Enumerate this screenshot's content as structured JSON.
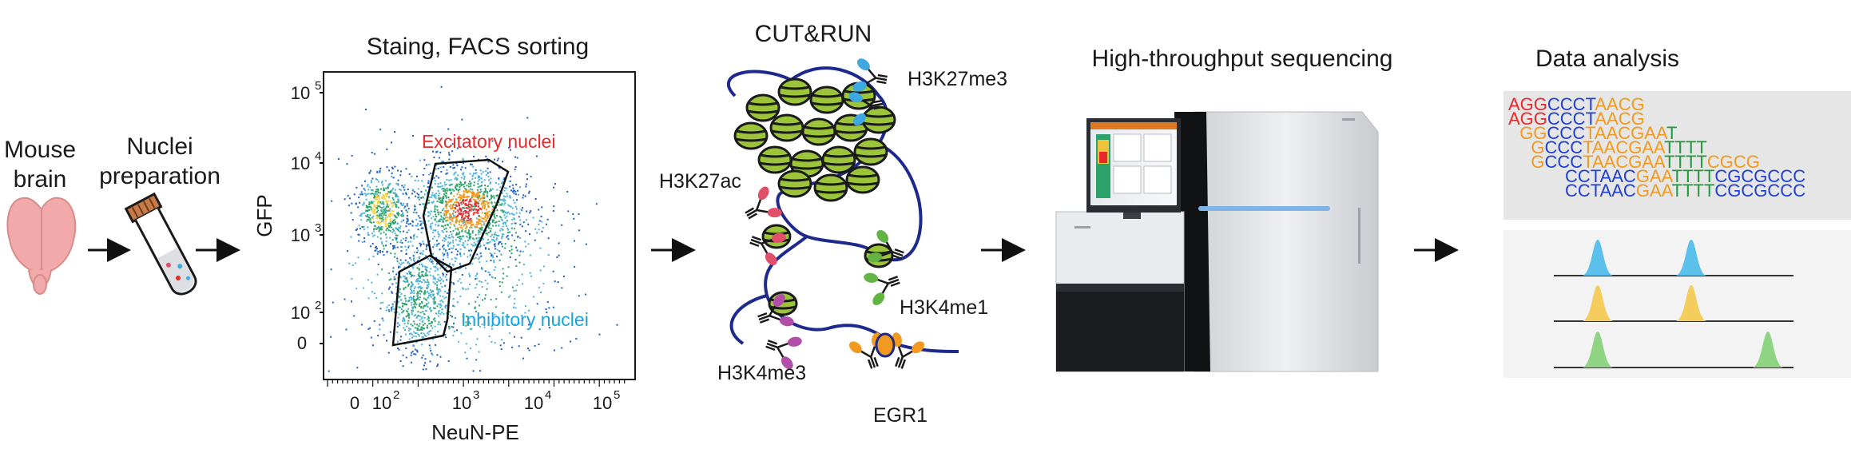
{
  "labels": {
    "mouse": "Mouse",
    "brain": "brain",
    "nuclei": "Nuclei",
    "preparation": "preparation",
    "facs_title": "Staing, FACS sorting",
    "cutrun_title": "CUT&RUN",
    "seq_title": "High-throughput sequencing",
    "analysis_title": "Data analysis"
  },
  "facs": {
    "y_axis_label": "GFP",
    "x_axis_label": "NeuN-PE",
    "y_ticks": {
      "t5": "5",
      "t4": "4",
      "t3": "3",
      "t2": "2"
    },
    "x_ticks": {
      "t2": "2",
      "t3": "3",
      "t4": "4",
      "t5": "5"
    },
    "tick_base": "10",
    "zero": "0",
    "gate_excitatory": "Excitatory nuclei",
    "gate_inhibitory": "Inhibitory nuclei",
    "gate_excitatory_color": "#e8292a",
    "gate_inhibitory_color": "#1aa3dc"
  },
  "cutrun": {
    "marks": {
      "h3k27me3": "H3K27me3",
      "h3k27ac": "H3K27ac",
      "h3k4me1": "H3K4me1",
      "h3k4me3": "H3K4me3",
      "egr1": "EGR1"
    },
    "colors": {
      "h3k27me3": "#3ea8e0",
      "h3k27ac": "#e0506a",
      "h3k4me1": "#62b544",
      "h3k4me3": "#b14fa8",
      "egr1": "#f19a1f",
      "dna": "#1d2a8c",
      "nucleosome": "#9bc43a"
    }
  },
  "reads": [
    {
      "segments": [
        [
          "AGG",
          "#e8292a"
        ],
        [
          "CCCT",
          "#1f3fd6"
        ],
        [
          "AACG",
          "#f19a1f"
        ]
      ]
    },
    {
      "segments": [
        [
          "AGG",
          "#e8292a"
        ],
        [
          "CCCT",
          "#1f3fd6"
        ],
        [
          "AACG",
          "#f19a1f"
        ]
      ]
    },
    {
      "segments": [
        [
          "GG",
          "#f19a1f"
        ],
        [
          "CCC",
          "#1f3fd6"
        ],
        [
          "TAACGAA",
          "#f19a1f"
        ],
        [
          "T",
          "#1e9a3a"
        ]
      ]
    },
    {
      "segments": [
        [
          "G",
          "#f19a1f"
        ],
        [
          "CCC",
          "#1f3fd6"
        ],
        [
          "TAACGAA",
          "#f19a1f"
        ],
        [
          "TTTT",
          "#1e9a3a"
        ]
      ]
    },
    {
      "segments": [
        [
          "G",
          "#f19a1f"
        ],
        [
          "CCC",
          "#1f3fd6"
        ],
        [
          "TAACGAA",
          "#f19a1f"
        ],
        [
          "TTTT",
          "#1e9a3a"
        ],
        [
          "CGCG",
          "#f19a1f"
        ]
      ]
    },
    {
      "segments": [
        [
          "CCTAAC",
          "#1f3fd6"
        ],
        [
          "GAA",
          "#f19a1f"
        ],
        [
          "TTTT",
          "#1e9a3a"
        ],
        [
          "CGCGCCC",
          "#1f3fd6"
        ]
      ]
    },
    {
      "segments": [
        [
          "CCTAAC",
          "#1f3fd6"
        ],
        [
          "GAA",
          "#f19a1f"
        ],
        [
          "TTTT",
          "#1e9a3a"
        ],
        [
          "CGCGCCC",
          "#1f3fd6"
        ]
      ]
    }
  ],
  "tracks": [
    {
      "color": "#5bc0eb",
      "peaks": [
        0.25,
        0.64
      ]
    },
    {
      "color": "#f5cd5c",
      "peaks": [
        0.25,
        0.64
      ]
    },
    {
      "color": "#8fd483",
      "peaks": [
        0.25,
        0.96
      ]
    }
  ]
}
